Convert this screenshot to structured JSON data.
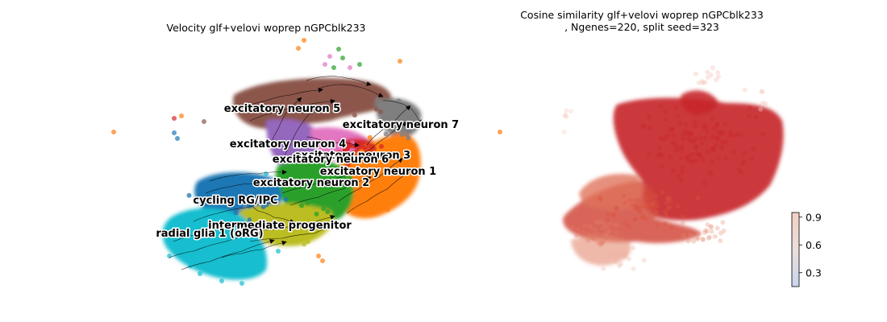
{
  "chart_data": [
    {
      "type": "scatter",
      "title": "Velocity glf+velovi woprep nGPCblk233",
      "xlabel": "",
      "ylabel": "",
      "axes_visible": false,
      "overlay": "velocity streamlines",
      "legend": "on data",
      "clusters": [
        {
          "name": "excitatory neuron 5",
          "color": "#8c564b"
        },
        {
          "name": "excitatory neuron 7",
          "color": "#7f7f7f"
        },
        {
          "name": "excitatory neuron 4",
          "color": "#9467bd"
        },
        {
          "name": "excitatory neuron 3",
          "color": "#e377c2"
        },
        {
          "name": "excitatory neuron 6",
          "color": "#d62728"
        },
        {
          "name": "excitatory neuron 1",
          "color": "#ff7f0e"
        },
        {
          "name": "excitatory neuron 2",
          "color": "#2ca02c"
        },
        {
          "name": "cycling RG/IPC",
          "color": "#1f77b4"
        },
        {
          "name": "intermediate progenitor",
          "color": "#bcbd22"
        },
        {
          "name": "radial glia 1 (oRG)",
          "color": "#17becf"
        }
      ]
    },
    {
      "type": "scatter",
      "title_line1": "Cosine similarity glf+velovi woprep nGPCblk233",
      "title_line2": ", Ngenes=220, split seed=323",
      "xlabel": "",
      "ylabel": "",
      "axes_visible": false,
      "colormap": "coolwarm",
      "colorbar": {
        "ticks": [
          "0.3",
          "0.6",
          "0.9"
        ],
        "tick_values": [
          0.3,
          0.6,
          0.9
        ],
        "range": [
          0.15,
          0.95
        ]
      }
    }
  ]
}
